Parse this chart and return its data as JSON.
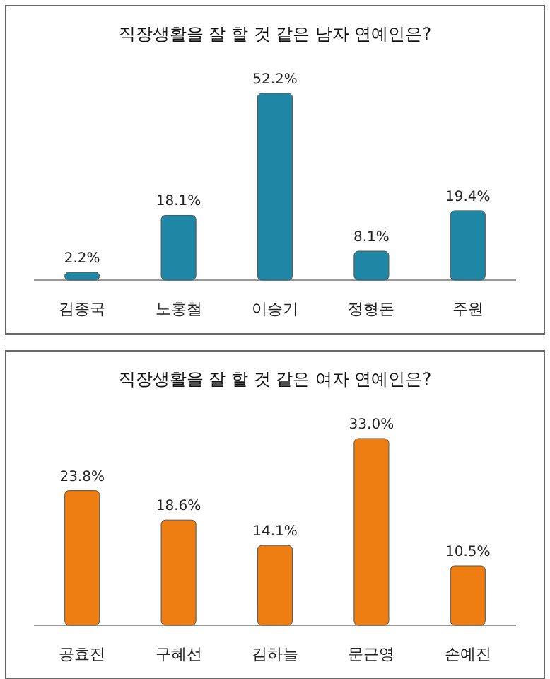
{
  "chart_data": [
    {
      "type": "bar",
      "title": "직장생활을 잘 할 것 같은 남자 연예인은?",
      "categories": [
        "김종국",
        "노홍철",
        "이승기",
        "정형돈",
        "주원"
      ],
      "values": [
        2.2,
        18.1,
        52.2,
        8.1,
        19.4
      ],
      "value_labels": [
        "2.2%",
        "18.1%",
        "52.2%",
        "8.1%",
        "19.4%"
      ],
      "color": "#1f86a6"
    },
    {
      "type": "bar",
      "title": "직장생활을 잘 할 것 같은 여자 연예인은?",
      "categories": [
        "공효진",
        "구혜선",
        "김하늘",
        "문근영",
        "손예진"
      ],
      "values": [
        23.8,
        18.6,
        14.1,
        33.0,
        10.5
      ],
      "value_labels": [
        "23.8%",
        "18.6%",
        "14.1%",
        "33.0%",
        "10.5%"
      ],
      "color": "#ee7d12"
    }
  ]
}
